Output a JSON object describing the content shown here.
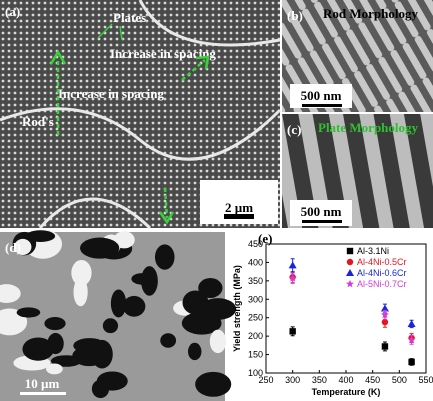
{
  "panels": {
    "a": {
      "label": "(a)",
      "plates": "Plates",
      "spacing_1": "Increase in spacing",
      "spacing_2": "Increase in spacing",
      "rods": "Rod's",
      "scale": "2 µm"
    },
    "b": {
      "label": "(b)",
      "title": "Rod Morphology",
      "scale": "500 nm"
    },
    "c": {
      "label": "(c)",
      "title": "Plate Morphology",
      "scale": "500 nm"
    },
    "d": {
      "label": "(d)",
      "scale": "10 µm"
    },
    "e": {
      "label": "(e)"
    }
  },
  "chart_data": {
    "type": "scatter",
    "x_label": "Temperature (K)",
    "y_label": "Yield strength (MPa)",
    "x": [
      300,
      473,
      523
    ],
    "series": [
      {
        "name": "Al-3.1Ni",
        "color": "#000000",
        "marker": "square",
        "values": [
          213,
          172,
          130
        ],
        "errors": [
          12,
          12,
          9
        ]
      },
      {
        "name": "Al-4Ni-0.5Cr",
        "color": "#e8141c",
        "marker": "circle",
        "values": [
          360,
          238,
          195
        ],
        "errors": [
          15,
          14,
          12
        ]
      },
      {
        "name": "Al-4Ni-0.6Cr",
        "color": "#1a24d8",
        "marker": "triangle",
        "values": [
          392,
          275,
          233
        ],
        "errors": [
          18,
          12,
          10
        ]
      },
      {
        "name": "Al-5Ni-0.7Cr",
        "color": "#d63ad6",
        "marker": "star",
        "values": [
          357,
          258,
          190
        ],
        "errors": [
          14,
          12,
          12
        ]
      }
    ],
    "xlim": [
      250,
      550
    ],
    "xticks": [
      250,
      300,
      350,
      400,
      450,
      500,
      550
    ],
    "ylim": [
      100,
      450
    ],
    "yticks": [
      100,
      150,
      200,
      250,
      300,
      350,
      400,
      450
    ],
    "legend": "upper right"
  }
}
